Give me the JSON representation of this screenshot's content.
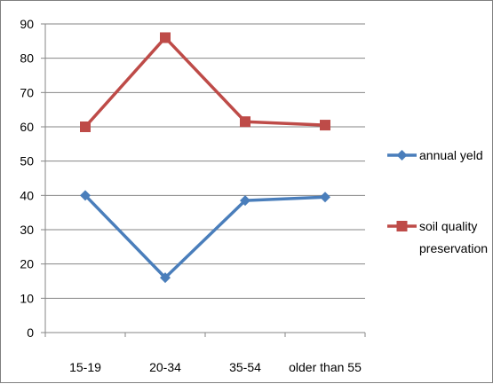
{
  "chart_data": {
    "type": "line",
    "categories": [
      "15-19",
      "20-34",
      "35-54",
      "older than 55"
    ],
    "y_ticks": [
      "0",
      "10",
      "20",
      "30",
      "40",
      "50",
      "60",
      "70",
      "80",
      "90"
    ],
    "ylim": [
      0,
      90
    ],
    "grid": true,
    "legend_position": "right",
    "series": [
      {
        "name": "annual yeld",
        "values": [
          40,
          16,
          38.5,
          39.5
        ],
        "color": "#4a7ebb",
        "marker": "diamond"
      },
      {
        "name": "soil quality preservation",
        "name_lines": [
          "soil quality",
          "preservation"
        ],
        "values": [
          60,
          86,
          61.5,
          60.5
        ],
        "color": "#be4b48",
        "marker": "square"
      }
    ]
  }
}
